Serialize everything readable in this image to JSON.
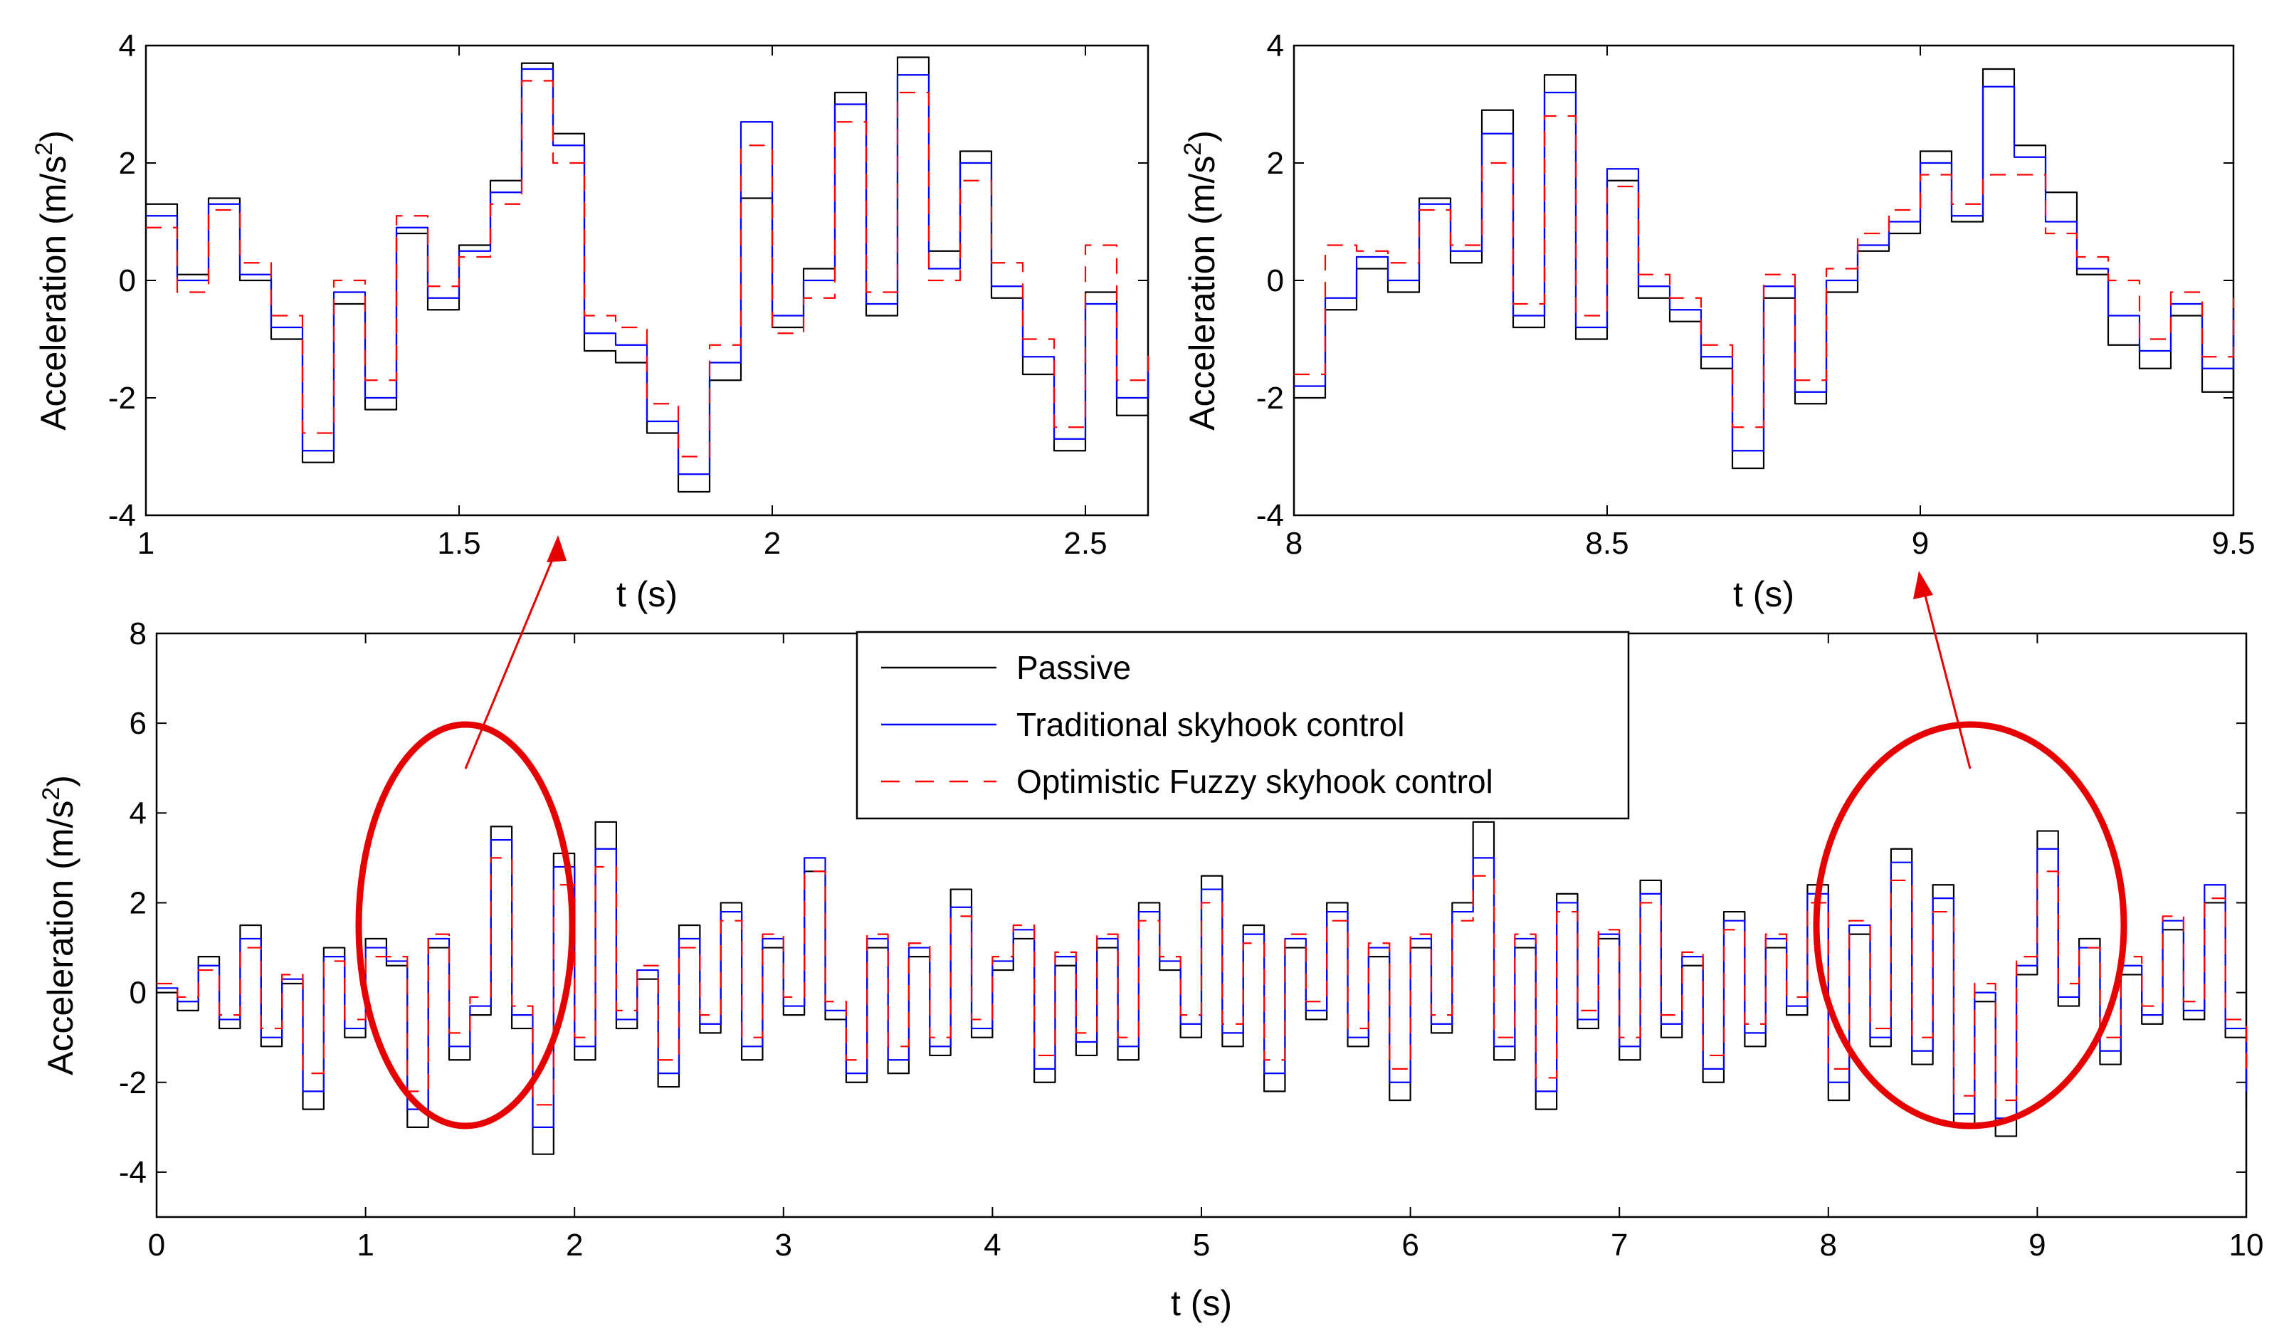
{
  "colors": {
    "passive": "#000000",
    "traditional": "#0000ff",
    "fuzzy": "#ff0000",
    "highlight": "#e60000",
    "axes": "#000000",
    "background": "#ffffff"
  },
  "legend": {
    "entries": [
      {
        "name": "Passive",
        "color": "#000000",
        "style": "solid"
      },
      {
        "name": "Traditional skyhook control",
        "color": "#0000ff",
        "style": "solid"
      },
      {
        "name": "Optimistic Fuzzy skyhook control",
        "color": "#ff0000",
        "style": "dashed"
      }
    ]
  },
  "chart_data": [
    {
      "id": "zoom-left",
      "type": "line",
      "title": "",
      "xlabel": "t (s)",
      "ylabel": "Acceleration (m/s^2)",
      "xlim": [
        1,
        2.6
      ],
      "ylim": [
        -4,
        4
      ],
      "xticks": [
        "1",
        "1.5",
        "2",
        "2.5"
      ],
      "xtick_values": [
        1,
        1.5,
        2,
        2.5
      ],
      "yticks": [
        "-4",
        "-2",
        "0",
        "2",
        "4"
      ],
      "ytick_values": [
        -4,
        -2,
        0,
        2,
        4
      ],
      "x": [
        1.0,
        1.05,
        1.1,
        1.15,
        1.2,
        1.25,
        1.3,
        1.35,
        1.4,
        1.45,
        1.5,
        1.55,
        1.6,
        1.65,
        1.7,
        1.75,
        1.8,
        1.85,
        1.9,
        1.95,
        2.0,
        2.05,
        2.1,
        2.15,
        2.2,
        2.25,
        2.3,
        2.35,
        2.4,
        2.45,
        2.5,
        2.55,
        2.6
      ],
      "series": [
        {
          "name": "Passive",
          "values": [
            1.3,
            0.1,
            1.4,
            0.0,
            -1.0,
            -3.1,
            -0.4,
            -2.2,
            0.8,
            -0.5,
            0.6,
            1.7,
            3.7,
            2.5,
            -1.2,
            -1.4,
            -2.6,
            -3.6,
            -1.7,
            1.4,
            -0.8,
            0.2,
            3.2,
            -0.6,
            3.8,
            0.5,
            2.2,
            -0.3,
            -1.6,
            -2.9,
            -0.2,
            -2.3,
            -1.7
          ]
        },
        {
          "name": "Traditional skyhook control",
          "values": [
            1.1,
            0.0,
            1.3,
            0.1,
            -0.8,
            -2.9,
            -0.2,
            -2.0,
            0.9,
            -0.3,
            0.5,
            1.5,
            3.6,
            2.3,
            -0.9,
            -1.1,
            -2.4,
            -3.3,
            -1.4,
            2.7,
            -0.6,
            0.0,
            3.0,
            -0.4,
            3.5,
            0.2,
            2.0,
            -0.1,
            -1.3,
            -2.7,
            -0.4,
            -2.0,
            -1.3
          ]
        },
        {
          "name": "Optimistic Fuzzy skyhook control",
          "values": [
            0.9,
            -0.2,
            1.2,
            0.3,
            -0.6,
            -2.6,
            0.0,
            -1.7,
            1.1,
            -0.1,
            0.4,
            1.3,
            3.4,
            2.0,
            -0.6,
            -0.8,
            -2.1,
            -3.0,
            -1.1,
            2.3,
            -0.9,
            -0.3,
            2.7,
            -0.2,
            3.2,
            0.0,
            1.7,
            0.3,
            -1.0,
            -2.5,
            0.6,
            -1.7,
            -1.1
          ]
        }
      ]
    },
    {
      "id": "zoom-right",
      "type": "line",
      "title": "",
      "xlabel": "t (s)",
      "ylabel": "Acceleration (m/s^2)",
      "xlim": [
        8,
        9.5
      ],
      "ylim": [
        -4,
        4
      ],
      "xticks": [
        "8",
        "8.5",
        "9",
        "9.5"
      ],
      "xtick_values": [
        8,
        8.5,
        9,
        9.5
      ],
      "yticks": [
        "-4",
        "-2",
        "0",
        "2",
        "4"
      ],
      "ytick_values": [
        -4,
        -2,
        0,
        2,
        4
      ],
      "x": [
        8.0,
        8.05,
        8.1,
        8.15,
        8.2,
        8.25,
        8.3,
        8.35,
        8.4,
        8.45,
        8.5,
        8.55,
        8.6,
        8.65,
        8.7,
        8.75,
        8.8,
        8.85,
        8.9,
        8.95,
        9.0,
        9.05,
        9.1,
        9.15,
        9.2,
        9.25,
        9.3,
        9.35,
        9.4,
        9.45,
        9.5
      ],
      "series": [
        {
          "name": "Passive",
          "values": [
            -2.0,
            -0.5,
            0.2,
            -0.2,
            1.4,
            0.3,
            2.9,
            -0.8,
            3.5,
            -1.0,
            1.7,
            -0.3,
            -0.7,
            -1.5,
            -3.2,
            -0.3,
            -2.1,
            -0.2,
            0.5,
            0.8,
            2.2,
            1.0,
            3.6,
            2.3,
            1.5,
            0.1,
            -1.1,
            -1.5,
            -0.6,
            -1.9,
            -0.7
          ]
        },
        {
          "name": "Traditional skyhook control",
          "values": [
            -1.8,
            -0.3,
            0.4,
            0.0,
            1.3,
            0.5,
            2.5,
            -0.6,
            3.2,
            -0.8,
            1.9,
            -0.1,
            -0.5,
            -1.3,
            -2.9,
            -0.1,
            -1.9,
            0.0,
            0.6,
            1.0,
            2.0,
            1.1,
            3.3,
            2.1,
            1.0,
            0.2,
            -0.6,
            -1.2,
            -0.4,
            -1.5,
            -0.5
          ]
        },
        {
          "name": "Optimistic Fuzzy skyhook control",
          "values": [
            -1.6,
            0.6,
            0.5,
            0.3,
            1.2,
            0.6,
            2.0,
            -0.4,
            2.8,
            -0.6,
            1.6,
            0.1,
            -0.3,
            -1.1,
            -2.5,
            0.1,
            -1.7,
            0.2,
            0.8,
            1.2,
            1.8,
            1.3,
            1.8,
            1.8,
            0.8,
            0.4,
            0.0,
            -1.0,
            -0.2,
            -1.3,
            -0.3
          ]
        }
      ]
    },
    {
      "id": "full-range",
      "type": "line",
      "title": "",
      "xlabel": "t (s)",
      "ylabel": "Acceleration (m/s^2)",
      "xlim": [
        0,
        10
      ],
      "ylim": [
        -5,
        8
      ],
      "xticks": [
        "0",
        "1",
        "2",
        "3",
        "4",
        "5",
        "6",
        "7",
        "8",
        "9",
        "10"
      ],
      "xtick_values": [
        0,
        1,
        2,
        3,
        4,
        5,
        6,
        7,
        8,
        9,
        10
      ],
      "yticks": [
        "-4",
        "-2",
        "0",
        "2",
        "4",
        "6",
        "8"
      ],
      "ytick_values": [
        -4,
        -2,
        0,
        2,
        4,
        6,
        8
      ],
      "x": [
        0.0,
        0.1,
        0.2,
        0.3,
        0.4,
        0.5,
        0.6,
        0.7,
        0.8,
        0.9,
        1.0,
        1.1,
        1.2,
        1.3,
        1.4,
        1.5,
        1.6,
        1.7,
        1.8,
        1.9,
        2.0,
        2.1,
        2.2,
        2.3,
        2.4,
        2.5,
        2.6,
        2.7,
        2.8,
        2.9,
        3.0,
        3.1,
        3.2,
        3.3,
        3.4,
        3.5,
        3.6,
        3.7,
        3.8,
        3.9,
        4.0,
        4.1,
        4.2,
        4.3,
        4.4,
        4.5,
        4.6,
        4.7,
        4.8,
        4.9,
        5.0,
        5.1,
        5.2,
        5.3,
        5.4,
        5.5,
        5.6,
        5.7,
        5.8,
        5.9,
        6.0,
        6.1,
        6.2,
        6.3,
        6.4,
        6.5,
        6.6,
        6.7,
        6.8,
        6.9,
        7.0,
        7.1,
        7.2,
        7.3,
        7.4,
        7.5,
        7.6,
        7.7,
        7.8,
        7.9,
        8.0,
        8.1,
        8.2,
        8.3,
        8.4,
        8.5,
        8.6,
        8.7,
        8.8,
        8.9,
        9.0,
        9.1,
        9.2,
        9.3,
        9.4,
        9.5,
        9.6,
        9.7,
        9.8,
        9.9,
        10.0
      ],
      "series": [
        {
          "name": "Passive",
          "values": [
            0.0,
            -0.4,
            0.8,
            -0.8,
            1.5,
            -1.2,
            0.2,
            -2.6,
            1.0,
            -1.0,
            1.2,
            0.6,
            -3.0,
            1.0,
            -1.5,
            -0.5,
            3.7,
            -0.8,
            -3.6,
            3.1,
            -1.5,
            3.8,
            -0.8,
            0.3,
            -2.1,
            1.5,
            -0.9,
            2.0,
            -1.5,
            1.0,
            -0.5,
            2.7,
            -0.6,
            -2.0,
            1.0,
            -1.8,
            0.8,
            -1.4,
            2.3,
            -1.0,
            0.5,
            1.2,
            -2.0,
            0.6,
            -1.4,
            1.0,
            -1.5,
            2.0,
            0.5,
            -1.0,
            2.6,
            -1.2,
            1.5,
            -2.2,
            1.0,
            -0.6,
            2.0,
            -1.2,
            0.8,
            -2.4,
            1.0,
            -0.9,
            2.0,
            3.8,
            -1.5,
            1.0,
            -2.6,
            2.2,
            -0.8,
            1.2,
            -1.5,
            2.5,
            -1.0,
            0.6,
            -2.0,
            1.8,
            -1.2,
            1.0,
            -0.5,
            2.4,
            -2.4,
            1.3,
            -1.2,
            3.2,
            -1.6,
            2.4,
            -3.0,
            -0.2,
            -3.2,
            0.4,
            3.6,
            -0.3,
            1.2,
            -1.6,
            0.4,
            -0.7,
            1.4,
            -0.6,
            2.0,
            -1.0,
            -2.6
          ]
        },
        {
          "name": "Traditional skyhook control",
          "values": [
            0.1,
            -0.2,
            0.6,
            -0.6,
            1.2,
            -1.0,
            0.3,
            -2.2,
            0.8,
            -0.8,
            1.0,
            0.7,
            -2.6,
            1.2,
            -1.2,
            -0.3,
            3.4,
            -0.5,
            -3.0,
            2.8,
            -1.2,
            3.2,
            -0.6,
            0.5,
            -1.8,
            1.2,
            -0.7,
            1.8,
            -1.2,
            1.2,
            -0.3,
            3.0,
            -0.4,
            -1.8,
            1.2,
            -1.5,
            1.0,
            -1.2,
            1.9,
            -0.8,
            0.7,
            1.4,
            -1.7,
            0.8,
            -1.1,
            1.2,
            -1.2,
            1.8,
            0.7,
            -0.7,
            2.3,
            -0.9,
            1.3,
            -1.8,
            1.2,
            -0.4,
            1.8,
            -1.0,
            1.0,
            -2.0,
            1.2,
            -0.7,
            1.8,
            3.0,
            -1.2,
            1.2,
            -2.2,
            2.0,
            -0.6,
            1.3,
            -1.2,
            2.2,
            -0.7,
            0.8,
            -1.7,
            1.6,
            -0.9,
            1.2,
            -0.3,
            2.2,
            -2.0,
            1.5,
            -1.0,
            2.9,
            -1.3,
            2.1,
            -2.7,
            0.0,
            -2.8,
            0.6,
            3.2,
            -0.1,
            1.0,
            -1.3,
            0.6,
            -0.5,
            1.6,
            -0.4,
            2.4,
            -0.8,
            -2.2
          ]
        },
        {
          "name": "Optimistic Fuzzy skyhook control",
          "values": [
            0.2,
            -0.1,
            0.5,
            -0.5,
            1.0,
            -0.8,
            0.4,
            -1.8,
            0.7,
            -0.6,
            0.8,
            0.8,
            -2.2,
            1.3,
            -0.9,
            -0.1,
            3.0,
            -0.3,
            -2.5,
            2.4,
            -1.0,
            2.8,
            -0.4,
            0.6,
            -1.5,
            1.0,
            -0.5,
            1.6,
            -1.0,
            1.3,
            -0.1,
            2.7,
            -0.2,
            -1.5,
            1.3,
            -1.2,
            1.1,
            -1.0,
            1.7,
            -0.6,
            0.8,
            1.5,
            -1.4,
            0.9,
            -0.9,
            1.3,
            -1.0,
            1.6,
            0.8,
            -0.5,
            2.0,
            -0.7,
            1.1,
            -1.5,
            1.3,
            -0.2,
            1.6,
            -0.8,
            1.1,
            -1.7,
            1.3,
            -0.5,
            1.6,
            2.6,
            -1.0,
            1.3,
            -1.9,
            1.8,
            -0.4,
            1.4,
            -1.0,
            2.0,
            -0.5,
            0.9,
            -1.4,
            1.4,
            -0.7,
            1.3,
            -0.1,
            2.0,
            -1.7,
            1.6,
            -0.8,
            2.5,
            -1.0,
            1.8,
            -2.3,
            0.2,
            -2.4,
            0.8,
            2.7,
            0.2,
            1.0,
            -1.0,
            0.8,
            -0.3,
            1.7,
            -0.2,
            2.1,
            -0.6,
            -1.8
          ]
        }
      ]
    }
  ]
}
